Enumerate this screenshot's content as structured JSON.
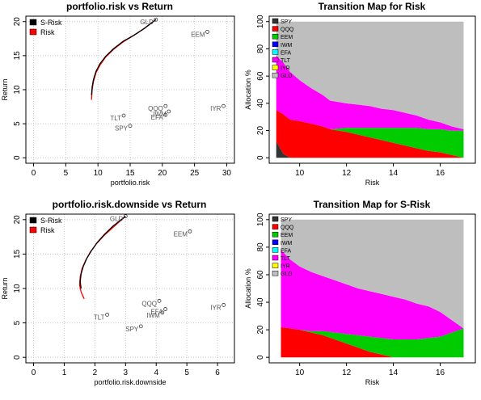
{
  "chart_data": [
    {
      "type": "scatter",
      "title": "portfolio.risk vs Return",
      "xlabel": "portfolio.risk",
      "ylabel": "Return",
      "xlim": [
        0,
        30
      ],
      "ylim": [
        0,
        20
      ],
      "xticks": [
        0,
        5,
        10,
        15,
        20,
        25,
        30
      ],
      "yticks": [
        0,
        5,
        10,
        15,
        20
      ],
      "grid": true,
      "legend_position": "top-left",
      "legend": [
        {
          "name": "S-Risk",
          "color": "#000000"
        },
        {
          "name": "Risk",
          "color": "#ff0000"
        }
      ],
      "points": [
        {
          "label": "SPY",
          "x": 15.0,
          "y": 4.7
        },
        {
          "label": "QQQ",
          "x": 20.5,
          "y": 7.6
        },
        {
          "label": "EEM",
          "x": 27.0,
          "y": 18.5
        },
        {
          "label": "IWM",
          "x": 21.0,
          "y": 6.8
        },
        {
          "label": "EFA",
          "x": 20.5,
          "y": 6.3
        },
        {
          "label": "TLT",
          "x": 14.0,
          "y": 6.2
        },
        {
          "label": "IYR",
          "x": 29.5,
          "y": 7.6
        },
        {
          "label": "GLD",
          "x": 19.0,
          "y": 20.3
        }
      ],
      "series": [
        {
          "name": "Risk",
          "color": "#ff0000",
          "x": [
            9.0,
            9.1,
            9.3,
            9.7,
            10.3,
            11.2,
            12.4,
            13.9,
            15.6,
            17.2,
            19.0
          ],
          "y": [
            8.5,
            10.0,
            11.2,
            12.5,
            13.6,
            14.8,
            15.9,
            17.0,
            18.0,
            19.0,
            20.3
          ]
        },
        {
          "name": "S-Risk",
          "color": "#000000",
          "x": [
            9.0,
            9.1,
            9.3,
            9.7,
            10.3,
            11.2,
            12.4,
            13.9,
            15.6,
            17.2,
            19.0
          ],
          "y": [
            9.2,
            10.4,
            11.5,
            12.7,
            13.8,
            14.9,
            16.0,
            17.1,
            18.0,
            19.0,
            20.3
          ]
        }
      ]
    },
    {
      "type": "area",
      "title": "Transition Map for Risk",
      "xlabel": "Risk",
      "ylabel": "Allocation %",
      "xlim": [
        8.7,
        17.5
      ],
      "ylim": [
        0,
        100
      ],
      "xticks": [
        10,
        12,
        14,
        16
      ],
      "yticks": [
        0,
        20,
        40,
        60,
        80,
        100
      ],
      "legend_position": "top-left",
      "x": [
        9.0,
        9.3,
        9.6,
        10.0,
        10.5,
        11.0,
        11.3,
        12.0,
        12.5,
        13.0,
        13.5,
        14.0,
        14.5,
        15.0,
        15.5,
        16.0,
        16.5,
        17.0
      ],
      "series": [
        {
          "name": "SPY",
          "color": "#333333",
          "values": [
            12,
            3,
            0,
            0,
            0,
            0,
            0,
            0,
            0,
            0,
            0,
            0,
            0,
            0,
            0,
            0,
            0,
            0
          ]
        },
        {
          "name": "QQQ",
          "color": "#ff0000",
          "values": [
            23,
            29,
            28,
            27,
            25,
            23,
            21,
            19,
            17,
            15,
            13,
            11,
            9,
            7,
            5,
            4,
            2,
            0
          ]
        },
        {
          "name": "EEM",
          "color": "#00cc00",
          "values": [
            0,
            0,
            0,
            0,
            0,
            0,
            0,
            3,
            5,
            7,
            9,
            11,
            13,
            15,
            16,
            17,
            18,
            20
          ]
        },
        {
          "name": "IWM",
          "color": "#0000ff",
          "values": [
            0,
            0,
            0,
            0,
            0,
            0,
            0,
            0,
            0,
            0,
            0,
            0,
            0,
            0,
            0,
            0,
            0,
            0
          ]
        },
        {
          "name": "EFA",
          "color": "#00ffff",
          "values": [
            0,
            0,
            0,
            0,
            0,
            0,
            0,
            0,
            0,
            0,
            0,
            0,
            0,
            0,
            0,
            0,
            0,
            0
          ]
        },
        {
          "name": "TLT",
          "color": "#ff00ff",
          "values": [
            40,
            38,
            35,
            30,
            26,
            23,
            21,
            18,
            17,
            16,
            14,
            13,
            11,
            9,
            7,
            5,
            3,
            1
          ]
        },
        {
          "name": "IYR",
          "color": "#ffff00",
          "values": [
            0,
            0,
            0,
            0,
            0,
            0,
            0,
            0,
            0,
            0,
            0,
            0,
            0,
            0,
            0,
            0,
            0,
            0
          ]
        },
        {
          "name": "GLD",
          "color": "#bebebe",
          "values": [
            25,
            30,
            37,
            43,
            49,
            54,
            58,
            60,
            61,
            62,
            64,
            65,
            67,
            69,
            72,
            74,
            77,
            79
          ]
        }
      ]
    },
    {
      "type": "scatter",
      "title": "portfolio.risk.downside vs Return",
      "xlabel": "portfolio.risk.downside",
      "ylabel": "Return",
      "xlim": [
        0,
        6.3
      ],
      "ylim": [
        0,
        20
      ],
      "xticks": [
        0,
        1,
        2,
        3,
        4,
        5,
        6
      ],
      "yticks": [
        0,
        5,
        10,
        15,
        20
      ],
      "grid": true,
      "legend_position": "top-left",
      "legend": [
        {
          "name": "S-Risk",
          "color": "#000000"
        },
        {
          "name": "Risk",
          "color": "#ff0000"
        }
      ],
      "points": [
        {
          "label": "SPY",
          "x": 3.5,
          "y": 4.5
        },
        {
          "label": "QQQ",
          "x": 4.1,
          "y": 8.2
        },
        {
          "label": "EEM",
          "x": 5.1,
          "y": 18.3
        },
        {
          "label": "IWM",
          "x": 4.2,
          "y": 6.5
        },
        {
          "label": "EFA",
          "x": 4.3,
          "y": 7.0
        },
        {
          "label": "TLT",
          "x": 2.4,
          "y": 6.2
        },
        {
          "label": "IYR",
          "x": 6.2,
          "y": 7.6
        },
        {
          "label": "GLD",
          "x": 3.0,
          "y": 20.5
        }
      ],
      "series": [
        {
          "name": "Risk",
          "color": "#ff0000",
          "x": [
            1.65,
            1.55,
            1.5,
            1.52,
            1.58,
            1.7,
            1.85,
            2.05,
            2.3,
            2.6,
            3.0
          ],
          "y": [
            8.5,
            9.5,
            10.5,
            11.7,
            12.9,
            14.1,
            15.3,
            16.5,
            17.7,
            18.9,
            20.5
          ]
        },
        {
          "name": "S-Risk",
          "color": "#000000",
          "x": [
            1.55,
            1.52,
            1.55,
            1.62,
            1.74,
            1.89,
            2.08,
            2.32,
            2.6,
            3.0
          ],
          "y": [
            10.0,
            11.0,
            12.1,
            13.2,
            14.4,
            15.5,
            16.7,
            17.9,
            19.1,
            20.5
          ]
        }
      ]
    },
    {
      "type": "area",
      "title": "Transition Map for S-Risk",
      "xlabel": "Risk",
      "ylabel": "Allocation %",
      "xlim": [
        8.7,
        17.5
      ],
      "ylim": [
        0,
        100
      ],
      "xticks": [
        10,
        12,
        14,
        16
      ],
      "yticks": [
        0,
        20,
        40,
        60,
        80,
        100
      ],
      "legend_position": "top-left",
      "x": [
        9.2,
        9.6,
        10.0,
        10.5,
        11.0,
        11.5,
        12.0,
        12.5,
        13.0,
        13.5,
        14.0,
        14.5,
        15.0,
        15.5,
        16.0,
        16.5,
        17.0
      ],
      "series": [
        {
          "name": "SPY",
          "color": "#333333",
          "values": [
            0,
            0,
            0,
            0,
            0,
            0,
            0,
            0,
            0,
            0,
            0,
            0,
            0,
            0,
            0,
            0,
            0
          ]
        },
        {
          "name": "QQQ",
          "color": "#ff0000",
          "values": [
            22,
            21,
            20,
            18,
            16,
            13,
            10,
            7,
            4,
            2,
            0,
            0,
            0,
            0,
            0,
            0,
            0
          ]
        },
        {
          "name": "EEM",
          "color": "#00cc00",
          "values": [
            0,
            0,
            0,
            1,
            3,
            5,
            7,
            9,
            11,
            12,
            13,
            13,
            13,
            14,
            15,
            18,
            21
          ]
        },
        {
          "name": "IWM",
          "color": "#0000ff",
          "values": [
            0,
            0,
            0,
            0,
            0,
            0,
            0,
            0,
            0,
            0,
            0,
            0,
            0,
            0,
            0,
            0,
            0
          ]
        },
        {
          "name": "EFA",
          "color": "#00ffff",
          "values": [
            0,
            0,
            0,
            0,
            0,
            0,
            0,
            0,
            0,
            0,
            0,
            0,
            0,
            0,
            0,
            0,
            0
          ]
        },
        {
          "name": "TLT",
          "color": "#ff00ff",
          "values": [
            56,
            50,
            46,
            43,
            40,
            38,
            36,
            34,
            33,
            32,
            31,
            29,
            26,
            23,
            18,
            9,
            0
          ]
        },
        {
          "name": "IYR",
          "color": "#ffff00",
          "values": [
            0,
            0,
            0,
            0,
            0,
            0,
            0,
            0,
            0,
            0,
            0,
            0,
            0,
            0,
            0,
            0,
            0
          ]
        },
        {
          "name": "GLD",
          "color": "#bebebe",
          "values": [
            22,
            29,
            34,
            38,
            41,
            44,
            47,
            50,
            52,
            54,
            56,
            58,
            61,
            63,
            67,
            73,
            79
          ]
        }
      ]
    }
  ]
}
